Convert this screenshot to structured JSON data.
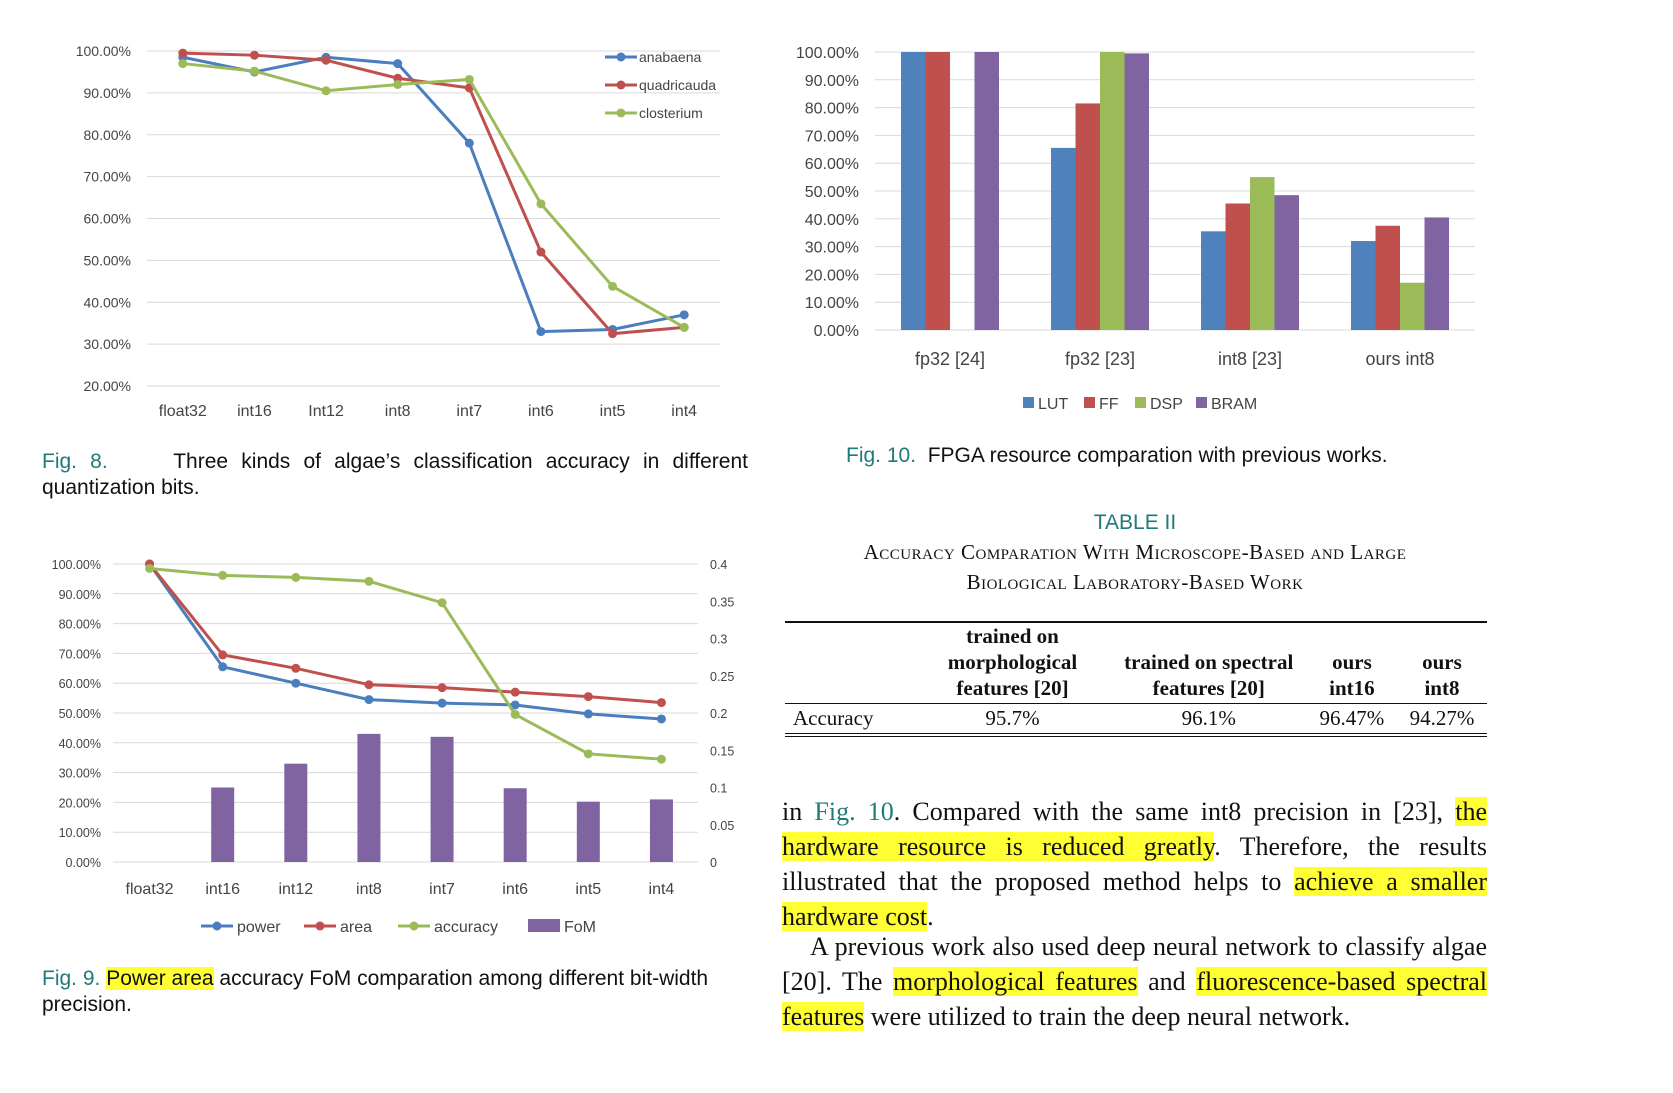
{
  "fig8": {
    "caption_num": "Fig. 8.",
    "caption_text": "Three kinds of algae’s classification accuracy in different quantization bits.",
    "chart_data": {
      "type": "line",
      "categories": [
        "float32",
        "int16",
        "Int12",
        "int8",
        "int7",
        "int6",
        "int5",
        "int4"
      ],
      "ylim": [
        20,
        100
      ],
      "yticks": [
        "100.00%",
        "90.00%",
        "80.00%",
        "70.00%",
        "60.00%",
        "50.00%",
        "40.00%",
        "30.00%",
        "20.00%"
      ],
      "legend_position": "top-right",
      "series": [
        {
          "name": "anabaena",
          "color": "#4a7ebf",
          "values": [
            98.5,
            95.0,
            98.5,
            97.0,
            78.0,
            33.0,
            33.5,
            37.0
          ]
        },
        {
          "name": "quadricauda",
          "color": "#c0504d",
          "values": [
            99.5,
            99.0,
            97.8,
            93.5,
            91.2,
            52.0,
            32.5,
            34.0
          ]
        },
        {
          "name": "closterium",
          "color": "#9bbb59",
          "values": [
            97.0,
            95.2,
            90.5,
            92.0,
            93.2,
            63.5,
            43.8,
            34.0
          ]
        }
      ]
    }
  },
  "fig9": {
    "caption_num": "Fig. 9.",
    "caption_hl": "Power area",
    "caption_rest": " accuracy FoM comparation among different bit-width precision.",
    "chart_data": {
      "type": "line",
      "categories": [
        "float32",
        "int16",
        "int12",
        "int8",
        "int7",
        "int6",
        "int5",
        "int4"
      ],
      "ylim": [
        0,
        100
      ],
      "y2lim": [
        0,
        0.4
      ],
      "yticks": [
        "100.00%",
        "90.00%",
        "80.00%",
        "70.00%",
        "60.00%",
        "50.00%",
        "40.00%",
        "30.00%",
        "20.00%",
        "10.00%",
        "0.00%"
      ],
      "y2ticks": [
        "0.4",
        "0.35",
        "0.3",
        "0.25",
        "0.2",
        "0.15",
        "0.1",
        "0.05",
        "0"
      ],
      "legend_position": "bottom",
      "series": [
        {
          "name": "power",
          "color": "#4a7ebf",
          "kind": "line",
          "values": [
            100,
            65.5,
            60.0,
            54.5,
            53.3,
            52.7,
            49.7,
            48.0
          ]
        },
        {
          "name": "area",
          "color": "#c0504d",
          "kind": "line",
          "values": [
            100,
            69.5,
            65.0,
            59.5,
            58.5,
            57.0,
            55.5,
            53.5
          ]
        },
        {
          "name": "accuracy",
          "color": "#9bbb59",
          "kind": "line",
          "values": [
            98.5,
            96.2,
            95.5,
            94.2,
            87.0,
            49.5,
            36.3,
            34.5
          ]
        },
        {
          "name": "FoM",
          "color": "#8064a2",
          "kind": "bar",
          "axis": "secondary",
          "values": [
            0,
            0.1,
            0.132,
            0.172,
            0.168,
            0.099,
            0.081,
            0.084
          ]
        }
      ]
    }
  },
  "fig10": {
    "caption_num": "Fig. 10.",
    "caption_text": "FPGA resource comparation with previous works.",
    "chart_data": {
      "type": "bar",
      "categories": [
        "fp32 [24]",
        "fp32 [23]",
        "int8 [23]",
        "ours int8"
      ],
      "ylim": [
        0,
        100
      ],
      "yticks": [
        "100.00%",
        "90.00%",
        "80.00%",
        "70.00%",
        "60.00%",
        "50.00%",
        "40.00%",
        "30.00%",
        "20.00%",
        "10.00%",
        "0.00%"
      ],
      "legend_position": "bottom",
      "series": [
        {
          "name": "LUT",
          "color": "#4f81bd",
          "values": [
            100,
            65.5,
            35.5,
            32.0
          ]
        },
        {
          "name": "FF",
          "color": "#c0504d",
          "values": [
            100,
            81.5,
            45.5,
            37.5
          ]
        },
        {
          "name": "DSP",
          "color": "#9bbb59",
          "values": [
            0,
            100,
            55.0,
            17.0
          ]
        },
        {
          "name": "BRAM",
          "color": "#8064a2",
          "values": [
            100,
            99.5,
            48.5,
            40.5
          ]
        }
      ]
    }
  },
  "table2": {
    "label": "TABLE II",
    "title_line1": "Accuracy Comparation With Microscope-Based and Large",
    "title_line2": "Biological Laboratory-Based Work",
    "headers": [
      "",
      "trained on morphological features [20]",
      "trained on spectral features [20]",
      "ours int16",
      "ours int8"
    ],
    "row": [
      "Accuracy",
      "95.7%",
      "96.1%",
      "96.47%",
      "94.27%"
    ]
  },
  "text": {
    "p1_a": "in ",
    "p1_ref": "Fig. 10",
    "p1_b": ". Compared with the same int8 precision in [23], ",
    "p1_hl1": "the hardware resource is reduced greatly",
    "p1_c": ". Therefore, the results illustrated that the proposed method helps to ",
    "p1_hl2": "achieve a smaller hardware cost",
    "p1_d": ".",
    "p2_a": "A previous work also used deep neural network to classify algae [20]. The ",
    "p2_hl1": "morphological features",
    "p2_b": " and ",
    "p2_hl2": "fluorescence-based spectral features",
    "p2_c": " were utilized to train the deep neural network."
  }
}
